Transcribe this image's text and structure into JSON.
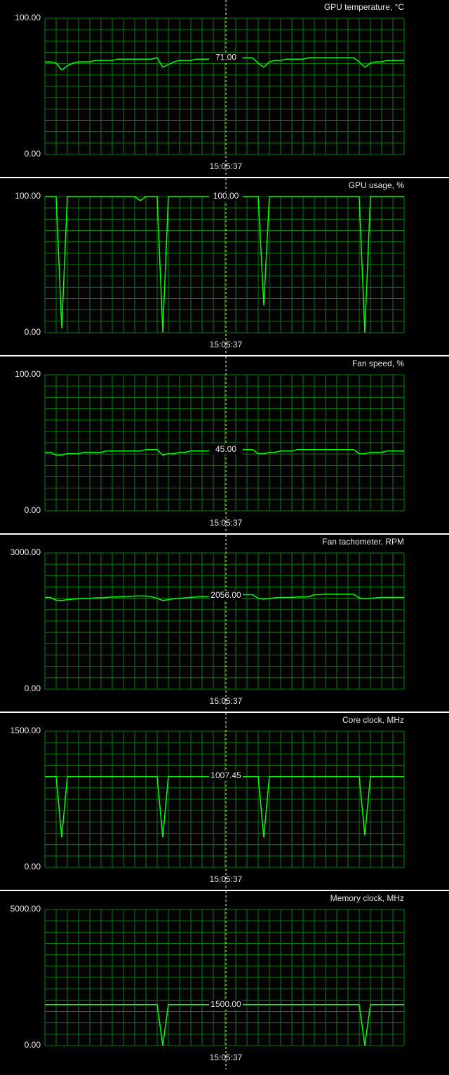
{
  "chart_data": [
    {
      "type": "line",
      "title": "GPU temperature, °C",
      "color": "#00ff00",
      "ylim": [
        0,
        100
      ],
      "yticks": [
        {
          "value": 0,
          "label": "0.00"
        },
        {
          "value": 100,
          "label": "100.00"
        }
      ],
      "cursor": {
        "value": 71,
        "label": "71.00",
        "time": "15:05:37"
      },
      "values": [
        68,
        68,
        67,
        62,
        65,
        67,
        68,
        68,
        68,
        69,
        69,
        69,
        69,
        70,
        70,
        70,
        70,
        70,
        70,
        70,
        71,
        64,
        66,
        68,
        69,
        69,
        69,
        70,
        70,
        70,
        70,
        70,
        71,
        71,
        71,
        71,
        71,
        71,
        67,
        64,
        68,
        69,
        69,
        70,
        70,
        70,
        70,
        71,
        71,
        71,
        71,
        71,
        71,
        71,
        71,
        71,
        68,
        64,
        67,
        68,
        68,
        69,
        69,
        69,
        69
      ]
    },
    {
      "type": "line",
      "title": "GPU usage, %",
      "color": "#00ff00",
      "ylim": [
        0,
        100
      ],
      "yticks": [
        {
          "value": 0,
          "label": "0.00"
        },
        {
          "value": 100,
          "label": "100.00"
        }
      ],
      "cursor": {
        "value": 100,
        "label": "100.00",
        "time": "15:05:37"
      },
      "values": [
        100,
        100,
        100,
        3,
        100,
        100,
        100,
        100,
        100,
        100,
        100,
        100,
        100,
        100,
        100,
        100,
        100,
        97,
        100,
        100,
        100,
        0,
        100,
        100,
        100,
        100,
        100,
        100,
        100,
        100,
        100,
        100,
        100,
        100,
        100,
        100,
        100,
        100,
        100,
        20,
        100,
        100,
        100,
        100,
        100,
        100,
        100,
        100,
        100,
        100,
        100,
        100,
        100,
        100,
        100,
        100,
        100,
        0,
        100,
        100,
        100,
        100,
        100,
        100,
        100
      ]
    },
    {
      "type": "line",
      "title": "Fan speed, %",
      "color": "#00ff00",
      "ylim": [
        0,
        100
      ],
      "yticks": [
        {
          "value": 0,
          "label": "0.00"
        },
        {
          "value": 100,
          "label": "100.00"
        }
      ],
      "cursor": {
        "value": 45,
        "label": "45.00",
        "time": "15:05:37"
      },
      "values": [
        43,
        43,
        41,
        41,
        42,
        42,
        42,
        43,
        43,
        43,
        43,
        44,
        44,
        44,
        44,
        44,
        44,
        44,
        45,
        45,
        45,
        41,
        42,
        42,
        43,
        43,
        44,
        44,
        44,
        44,
        45,
        45,
        45,
        45,
        45,
        45,
        45,
        45,
        42,
        42,
        43,
        43,
        44,
        44,
        44,
        45,
        45,
        45,
        45,
        45,
        45,
        45,
        45,
        45,
        45,
        45,
        42,
        42,
        43,
        43,
        43,
        44,
        44,
        44,
        44
      ]
    },
    {
      "type": "line",
      "title": "Fan tachometer, RPM",
      "color": "#00ff00",
      "ylim": [
        0,
        3000
      ],
      "yticks": [
        {
          "value": 0,
          "label": "0.00"
        },
        {
          "value": 3000,
          "label": "3000.00"
        }
      ],
      "cursor": {
        "value": 2056,
        "label": "2056.00",
        "time": "15:05:37"
      },
      "values": [
        2020,
        2020,
        1960,
        1950,
        1970,
        1980,
        1990,
        2000,
        2000,
        2010,
        2010,
        2020,
        2030,
        2030,
        2040,
        2040,
        2050,
        2050,
        2050,
        2040,
        2000,
        1950,
        1970,
        1990,
        2000,
        2010,
        2020,
        2030,
        2040,
        2040,
        2050,
        2050,
        2056,
        2070,
        2080,
        2080,
        2080,
        2080,
        2000,
        1980,
        2000,
        2010,
        2020,
        2020,
        2020,
        2030,
        2030,
        2040,
        2080,
        2080,
        2090,
        2090,
        2090,
        2090,
        2090,
        2090,
        2010,
        1990,
        2000,
        2010,
        2020,
        2020,
        2020,
        2020,
        2020
      ]
    },
    {
      "type": "line",
      "title": "Core clock, MHz",
      "color": "#00ff00",
      "ylim": [
        0,
        1500
      ],
      "yticks": [
        {
          "value": 0,
          "label": "0.00"
        },
        {
          "value": 1500,
          "label": "1500.00"
        }
      ],
      "cursor": {
        "value": 1007.45,
        "label": "1007.45",
        "time": "15:05:37"
      },
      "values": [
        1000,
        1000,
        1000,
        330,
        1000,
        1000,
        1000,
        1000,
        1000,
        1000,
        1000,
        1000,
        1000,
        1000,
        1000,
        1000,
        1000,
        1000,
        1000,
        1000,
        1000,
        330,
        1000,
        1000,
        1000,
        1000,
        1000,
        1000,
        1000,
        1000,
        1000,
        1000,
        1007,
        1007,
        1000,
        1000,
        1000,
        1000,
        1000,
        330,
        1000,
        1000,
        1000,
        1000,
        1000,
        1000,
        1000,
        1000,
        1000,
        1000,
        1000,
        1000,
        1000,
        1000,
        1000,
        1000,
        1000,
        350,
        1000,
        1000,
        1000,
        1000,
        1000,
        1000,
        1000
      ]
    },
    {
      "type": "line",
      "title": "Memory clock, MHz",
      "color": "#00ff00",
      "ylim": [
        0,
        5000
      ],
      "yticks": [
        {
          "value": 0,
          "label": "0.00"
        },
        {
          "value": 5000,
          "label": "5000.00"
        }
      ],
      "cursor": {
        "value": 1500,
        "label": "1500.00",
        "time": "15:05:37"
      },
      "values": [
        1500,
        1500,
        1500,
        1500,
        1500,
        1500,
        1500,
        1500,
        1500,
        1500,
        1500,
        1500,
        1500,
        1500,
        1500,
        1500,
        1500,
        1500,
        1500,
        1500,
        1500,
        0,
        1500,
        1500,
        1500,
        1500,
        1500,
        1500,
        1500,
        1500,
        1500,
        1500,
        1500,
        1500,
        1500,
        1500,
        1500,
        1500,
        1500,
        1500,
        1500,
        1500,
        1500,
        1500,
        1500,
        1500,
        1500,
        1500,
        1500,
        1500,
        1500,
        1500,
        1500,
        1500,
        1500,
        1500,
        1500,
        0,
        1500,
        1500,
        1500,
        1500,
        1500,
        1500,
        1500
      ]
    }
  ]
}
